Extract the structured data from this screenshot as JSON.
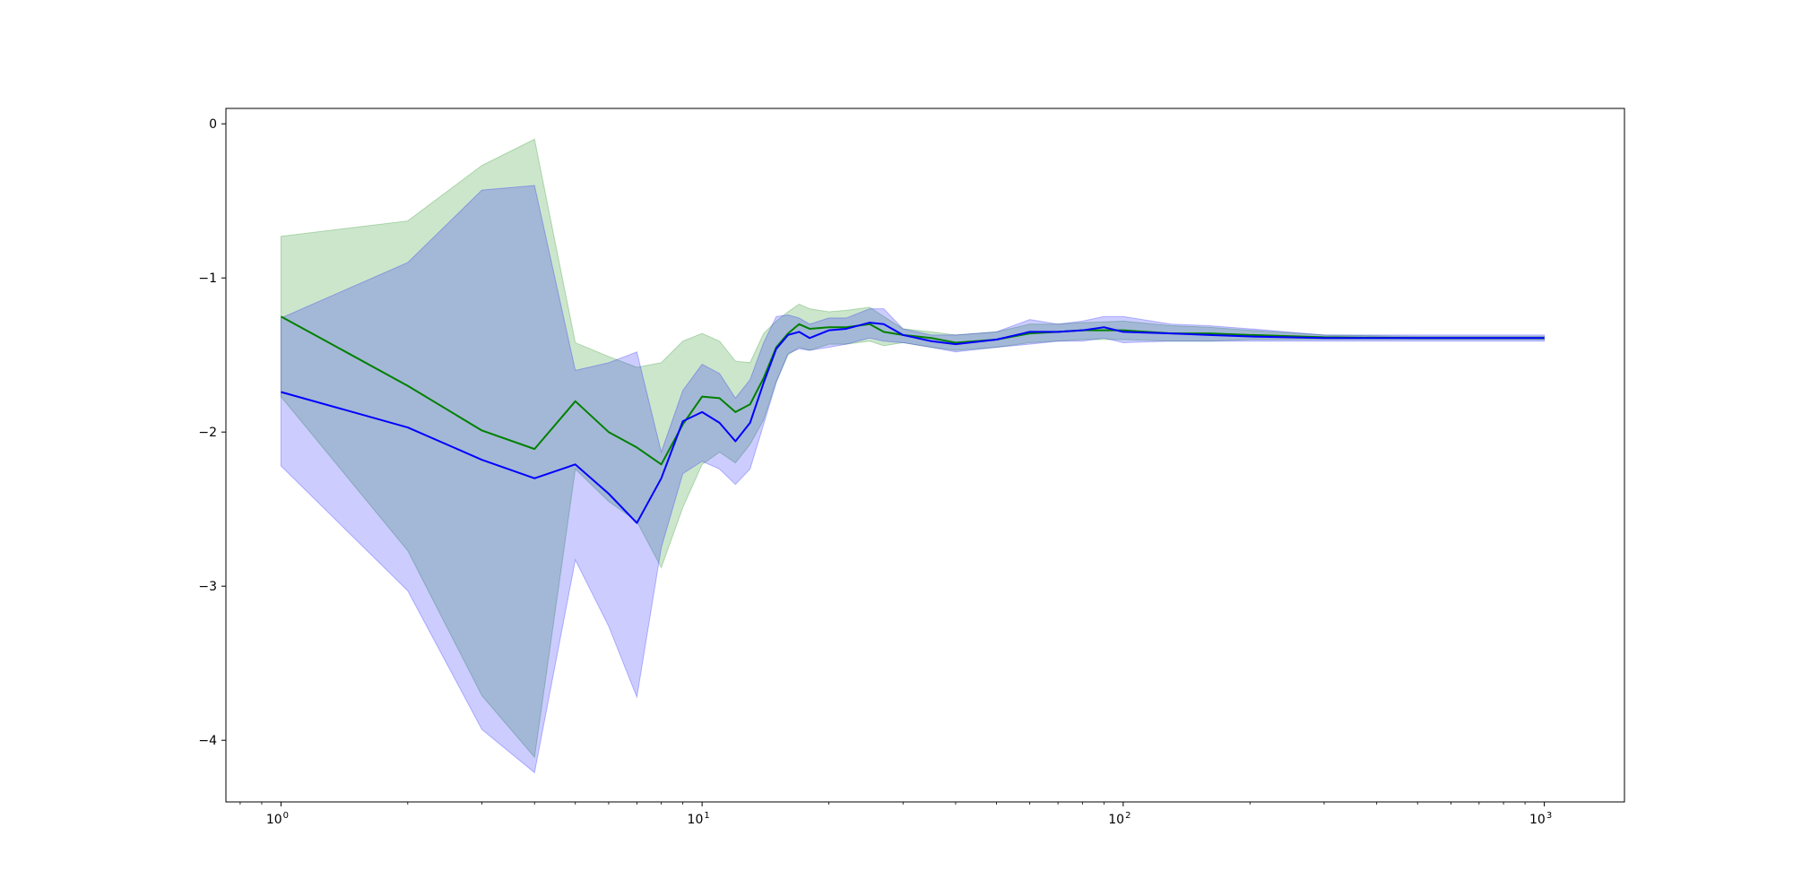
{
  "chart_data": {
    "type": "line",
    "title": "",
    "xlabel": "",
    "ylabel": "",
    "x_scale": "log",
    "xlim": [
      0.74,
      1550
    ],
    "ylim": [
      -4.4,
      0.1
    ],
    "grid": false,
    "legend": "none",
    "x_ticks": [
      {
        "value": 1,
        "label": "10",
        "exp": "0"
      },
      {
        "value": 10,
        "label": "10",
        "exp": "1"
      },
      {
        "value": 100,
        "label": "10",
        "exp": "2"
      },
      {
        "value": 1000,
        "label": "10",
        "exp": "3"
      }
    ],
    "y_ticks": [
      {
        "value": 0,
        "label": "0"
      },
      {
        "value": -1,
        "label": "−1"
      },
      {
        "value": -2,
        "label": "−2"
      },
      {
        "value": -3,
        "label": "−3"
      },
      {
        "value": -4,
        "label": "−4"
      }
    ],
    "series": [
      {
        "color": "#008000",
        "band_color": "#008000",
        "band_opacity": 0.2,
        "x": [
          1,
          2,
          3,
          4,
          5,
          6,
          7,
          8,
          9,
          10,
          11,
          12,
          13,
          14,
          15,
          16,
          17,
          18,
          20,
          22,
          25,
          27,
          30,
          35,
          40,
          50,
          60,
          70,
          80,
          100,
          130,
          160,
          200,
          300,
          500,
          1000
        ],
        "mean": [
          -1.25,
          -1.7,
          -1.99,
          -2.11,
          -1.8,
          -2.0,
          -2.1,
          -2.21,
          -1.95,
          -1.77,
          -1.78,
          -1.87,
          -1.82,
          -1.65,
          -1.45,
          -1.36,
          -1.3,
          -1.33,
          -1.32,
          -1.32,
          -1.3,
          -1.35,
          -1.37,
          -1.39,
          -1.42,
          -1.4,
          -1.36,
          -1.35,
          -1.34,
          -1.34,
          -1.36,
          -1.36,
          -1.37,
          -1.385,
          -1.39,
          -1.39
        ],
        "upper": [
          -0.73,
          -0.63,
          -0.27,
          -0.1,
          -1.42,
          -1.51,
          -1.58,
          -1.55,
          -1.41,
          -1.36,
          -1.41,
          -1.54,
          -1.55,
          -1.36,
          -1.28,
          -1.22,
          -1.17,
          -1.2,
          -1.22,
          -1.21,
          -1.19,
          -1.25,
          -1.33,
          -1.35,
          -1.37,
          -1.35,
          -1.3,
          -1.3,
          -1.29,
          -1.28,
          -1.31,
          -1.32,
          -1.34,
          -1.37,
          -1.38,
          -1.38
        ],
        "lower": [
          -1.77,
          -2.77,
          -3.71,
          -4.11,
          -2.24,
          -2.45,
          -2.58,
          -2.88,
          -2.49,
          -2.21,
          -2.13,
          -2.2,
          -2.08,
          -1.92,
          -1.67,
          -1.5,
          -1.45,
          -1.47,
          -1.43,
          -1.43,
          -1.41,
          -1.44,
          -1.42,
          -1.45,
          -1.47,
          -1.45,
          -1.42,
          -1.41,
          -1.4,
          -1.4,
          -1.41,
          -1.41,
          -1.4,
          -1.4,
          -1.4,
          -1.4
        ]
      },
      {
        "color": "#0000ff",
        "band_color": "#0000ff",
        "band_opacity": 0.2,
        "x": [
          1,
          2,
          3,
          4,
          5,
          6,
          7,
          8,
          9,
          10,
          11,
          12,
          13,
          14,
          15,
          16,
          17,
          18,
          20,
          22,
          25,
          27,
          30,
          35,
          40,
          50,
          60,
          70,
          80,
          90,
          100,
          130,
          160,
          200,
          300,
          500,
          1000
        ],
        "mean": [
          -1.74,
          -1.97,
          -2.18,
          -2.3,
          -2.21,
          -2.4,
          -2.59,
          -2.3,
          -1.93,
          -1.87,
          -1.94,
          -2.06,
          -1.94,
          -1.68,
          -1.46,
          -1.37,
          -1.35,
          -1.39,
          -1.34,
          -1.33,
          -1.29,
          -1.3,
          -1.37,
          -1.41,
          -1.43,
          -1.4,
          -1.35,
          -1.35,
          -1.34,
          -1.32,
          -1.35,
          -1.36,
          -1.37,
          -1.38,
          -1.39,
          -1.39,
          -1.39
        ],
        "upper": [
          -1.26,
          -0.9,
          -0.43,
          -0.4,
          -1.6,
          -1.55,
          -1.48,
          -2.13,
          -1.73,
          -1.56,
          -1.62,
          -1.78,
          -1.66,
          -1.42,
          -1.25,
          -1.24,
          -1.26,
          -1.3,
          -1.26,
          -1.26,
          -1.2,
          -1.2,
          -1.33,
          -1.37,
          -1.37,
          -1.35,
          -1.27,
          -1.3,
          -1.28,
          -1.25,
          -1.25,
          -1.3,
          -1.31,
          -1.33,
          -1.37,
          -1.37,
          -1.37
        ],
        "lower": [
          -2.22,
          -3.03,
          -3.93,
          -4.21,
          -2.83,
          -3.26,
          -3.72,
          -2.75,
          -2.27,
          -2.19,
          -2.24,
          -2.34,
          -2.24,
          -1.95,
          -1.68,
          -1.49,
          -1.46,
          -1.47,
          -1.45,
          -1.43,
          -1.39,
          -1.41,
          -1.42,
          -1.45,
          -1.48,
          -1.45,
          -1.43,
          -1.41,
          -1.41,
          -1.39,
          -1.42,
          -1.41,
          -1.41,
          -1.41,
          -1.41,
          -1.41,
          -1.41
        ]
      }
    ]
  }
}
